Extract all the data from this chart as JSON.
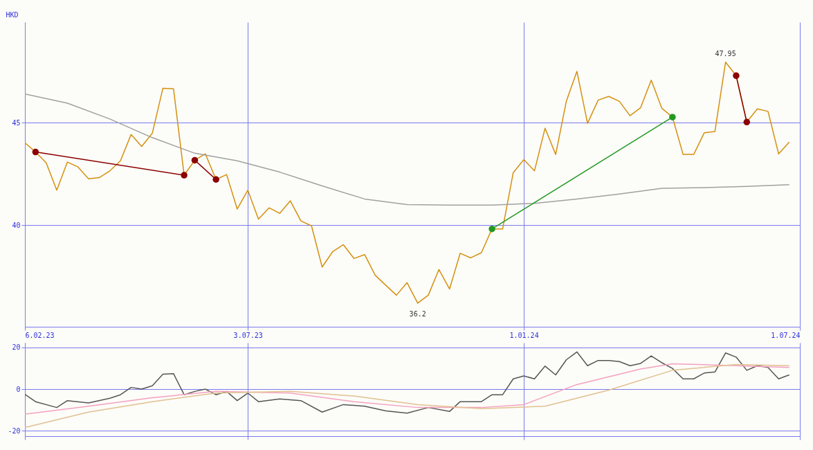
{
  "chart_data": [
    {
      "type": "line",
      "ylabel": "HKD",
      "xlim": [
        "2023-02-06",
        "2024-07-01"
      ],
      "ylim": [
        35.05,
        49.9
      ],
      "yticks": [
        40,
        45
      ],
      "xticks": [
        {
          "value": "2023-02-06",
          "label": "6.02.23"
        },
        {
          "value": "2023-07-03",
          "label": "3.07.23"
        },
        {
          "value": "2024-01-01",
          "label": "1.01.24"
        },
        {
          "value": "2024-07-01",
          "label": "1.07.24"
        }
      ],
      "grid": true,
      "series": [
        {
          "color": "#d4900f",
          "x": [
            "2023-02-06",
            "2023-02-13",
            "2023-02-20",
            "2023-02-27",
            "2023-03-06",
            "2023-03-13",
            "2023-03-20",
            "2023-03-27",
            "2023-04-03",
            "2023-04-10",
            "2023-04-17",
            "2023-04-24",
            "2023-05-01",
            "2023-05-08",
            "2023-05-15",
            "2023-05-22",
            "2023-05-29",
            "2023-06-05",
            "2023-06-12",
            "2023-06-19",
            "2023-06-26",
            "2023-07-03",
            "2023-07-10",
            "2023-07-17",
            "2023-07-24",
            "2023-07-31",
            "2023-08-07",
            "2023-08-14",
            "2023-08-21",
            "2023-08-28",
            "2023-09-04",
            "2023-09-11",
            "2023-09-18",
            "2023-09-25",
            "2023-10-02",
            "2023-10-09",
            "2023-10-16",
            "2023-10-23",
            "2023-10-30",
            "2023-11-06",
            "2023-11-13",
            "2023-11-20",
            "2023-11-27",
            "2023-12-04",
            "2023-12-11",
            "2023-12-18",
            "2023-12-25",
            "2024-01-01",
            "2024-01-08",
            "2024-01-15",
            "2024-01-22",
            "2024-01-29",
            "2024-02-05",
            "2024-02-12",
            "2024-02-19",
            "2024-02-26",
            "2024-03-04",
            "2024-03-11",
            "2024-03-18",
            "2024-03-25",
            "2024-04-01",
            "2024-04-08",
            "2024-04-15",
            "2024-04-22",
            "2024-04-29",
            "2024-05-06",
            "2024-05-13",
            "2024-05-20",
            "2024-05-27",
            "2024-06-03",
            "2024-06-10",
            "2024-06-17",
            "2024-06-24"
          ],
          "values": [
            44.02,
            43.57,
            43.05,
            41.71,
            43.08,
            42.84,
            42.26,
            42.32,
            42.65,
            43.14,
            44.42,
            43.84,
            44.48,
            46.68,
            46.65,
            42.44,
            43.17,
            43.48,
            42.23,
            42.47,
            40.79,
            41.71,
            40.3,
            40.85,
            40.58,
            41.19,
            40.21,
            39.97,
            37.96,
            38.72,
            39.05,
            38.38,
            38.57,
            37.56,
            37.07,
            36.59,
            37.2,
            36.2,
            36.59,
            37.84,
            36.89,
            38.63,
            38.41,
            38.66,
            39.82,
            39.82,
            42.56,
            43.2,
            42.65,
            44.73,
            43.45,
            46.04,
            47.5,
            44.97,
            46.1,
            46.28,
            46.04,
            45.34,
            45.73,
            47.07,
            45.7,
            45.27,
            43.45,
            43.45,
            44.51,
            44.57,
            47.95,
            47.29,
            45.03,
            45.67,
            45.55,
            43.48,
            44.05
          ]
        },
        {
          "color": "#a0a0a0",
          "x": [
            "2023-02-06",
            "2023-03-06",
            "2023-04-03",
            "2023-05-01",
            "2023-05-29",
            "2023-06-26",
            "2023-07-24",
            "2023-08-21",
            "2023-09-18",
            "2023-10-16",
            "2023-11-13",
            "2023-12-11",
            "2024-01-08",
            "2024-02-05",
            "2024-03-04",
            "2024-04-01",
            "2024-04-29",
            "2024-05-27",
            "2024-06-24"
          ],
          "values": [
            46.4,
            45.95,
            45.18,
            44.27,
            43.51,
            43.14,
            42.59,
            41.92,
            41.28,
            41.01,
            40.98,
            40.98,
            41.07,
            41.28,
            41.52,
            41.8,
            41.83,
            41.89,
            41.98
          ]
        },
        {
          "color": "#8b0000",
          "marker": "circle",
          "x": [
            "2023-02-13",
            "2023-05-22"
          ],
          "values": [
            43.57,
            42.44
          ]
        },
        {
          "color": "#8b0000",
          "marker": "circle",
          "x": [
            "2023-05-29",
            "2023-06-12"
          ],
          "values": [
            43.17,
            42.23
          ]
        },
        {
          "color": "#229922",
          "marker": "circle",
          "x": [
            "2023-12-11",
            "2024-04-08"
          ],
          "values": [
            39.82,
            45.27
          ]
        },
        {
          "color": "#8b0000",
          "marker": "circle",
          "x": [
            "2024-05-20",
            "2024-05-27"
          ],
          "values": [
            47.29,
            45.03
          ]
        }
      ],
      "annotations": [
        {
          "text": "47.95",
          "x": "2024-05-13",
          "y": 47.95
        },
        {
          "text": "36.2",
          "x": "2023-10-23",
          "y": 36.2
        }
      ]
    },
    {
      "type": "line",
      "xlim": [
        "2023-02-06",
        "2024-07-01"
      ],
      "ylim": [
        -22.5,
        22.2
      ],
      "yticks": [
        -20,
        0,
        20
      ],
      "xticks": [
        {
          "value": "2023-02-06",
          "label": null
        },
        {
          "value": "2023-07-03",
          "label": null
        },
        {
          "value": "2024-01-01",
          "label": null
        },
        {
          "value": "2024-07-01",
          "label": null
        }
      ],
      "grid": true,
      "tick_labels": "y",
      "series": [
        {
          "color": "#555555",
          "x": [
            "2023-02-06",
            "2023-02-13",
            "2023-02-27",
            "2023-03-06",
            "2023-03-20",
            "2023-04-03",
            "2023-04-10",
            "2023-04-17",
            "2023-04-24",
            "2023-05-01",
            "2023-05-08",
            "2023-05-15",
            "2023-05-22",
            "2023-05-29",
            "2023-06-05",
            "2023-06-12",
            "2023-06-19",
            "2023-06-26",
            "2023-07-03",
            "2023-07-10",
            "2023-07-24",
            "2023-08-07",
            "2023-08-21",
            "2023-09-04",
            "2023-09-18",
            "2023-10-02",
            "2023-10-16",
            "2023-10-30",
            "2023-11-13",
            "2023-11-20",
            "2023-12-04",
            "2023-12-11",
            "2023-12-18",
            "2023-12-25",
            "2024-01-01",
            "2024-01-08",
            "2024-01-15",
            "2024-01-22",
            "2024-01-29",
            "2024-02-05",
            "2024-02-12",
            "2024-02-19",
            "2024-02-26",
            "2024-03-04",
            "2024-03-11",
            "2024-03-18",
            "2024-03-25",
            "2024-04-01",
            "2024-04-08",
            "2024-04-15",
            "2024-04-22",
            "2024-04-29",
            "2024-05-06",
            "2024-05-13",
            "2024-05-20",
            "2024-05-27",
            "2024-06-03",
            "2024-06-10",
            "2024-06-17",
            "2024-06-24"
          ],
          "values": [
            -2.5,
            -6,
            -8.8,
            -5.5,
            -6.6,
            -4.4,
            -2.7,
            0.8,
            0,
            1.6,
            7.1,
            7.4,
            -2.7,
            -1.1,
            0,
            -2.7,
            -1.1,
            -5.5,
            -1.9,
            -6,
            -4.7,
            -5.5,
            -11,
            -7.4,
            -8.2,
            -10.4,
            -11.5,
            -8.8,
            -10.7,
            -6,
            -6,
            -2.7,
            -2.7,
            4.9,
            6.3,
            4.9,
            11,
            6.8,
            14,
            17.8,
            11.2,
            13.7,
            13.7,
            13.2,
            11.2,
            12.3,
            15.9,
            12.6,
            9.9,
            4.9,
            4.9,
            7.7,
            8.2,
            17.3,
            15.3,
            9,
            11.2,
            10.4,
            4.9,
            6.8
          ]
        },
        {
          "color": "#f4a0c0",
          "x": [
            "2023-02-06",
            "2023-03-20",
            "2023-05-01",
            "2023-06-12",
            "2023-07-31",
            "2023-09-11",
            "2023-10-23",
            "2023-12-04",
            "2024-01-01",
            "2024-02-05",
            "2024-03-18",
            "2024-04-08",
            "2024-05-20",
            "2024-06-24"
          ],
          "values": [
            -12,
            -8.2,
            -4.1,
            -1.1,
            -1.9,
            -6,
            -8.8,
            -8.8,
            -7.4,
            2.2,
            9.6,
            12.1,
            11.2,
            10.4
          ]
        },
        {
          "color": "#e0c090",
          "x": [
            "2023-02-06",
            "2023-03-20",
            "2023-05-01",
            "2023-06-12",
            "2023-07-31",
            "2023-09-11",
            "2023-10-23",
            "2023-12-04",
            "2024-01-15",
            "2024-02-26",
            "2024-04-08",
            "2024-05-20",
            "2024-06-24"
          ],
          "values": [
            -18.4,
            -11,
            -6,
            -1.9,
            -1.1,
            -3.3,
            -7.4,
            -9.3,
            -8.2,
            -0.5,
            9,
            11.8,
            11.2
          ]
        }
      ]
    }
  ]
}
